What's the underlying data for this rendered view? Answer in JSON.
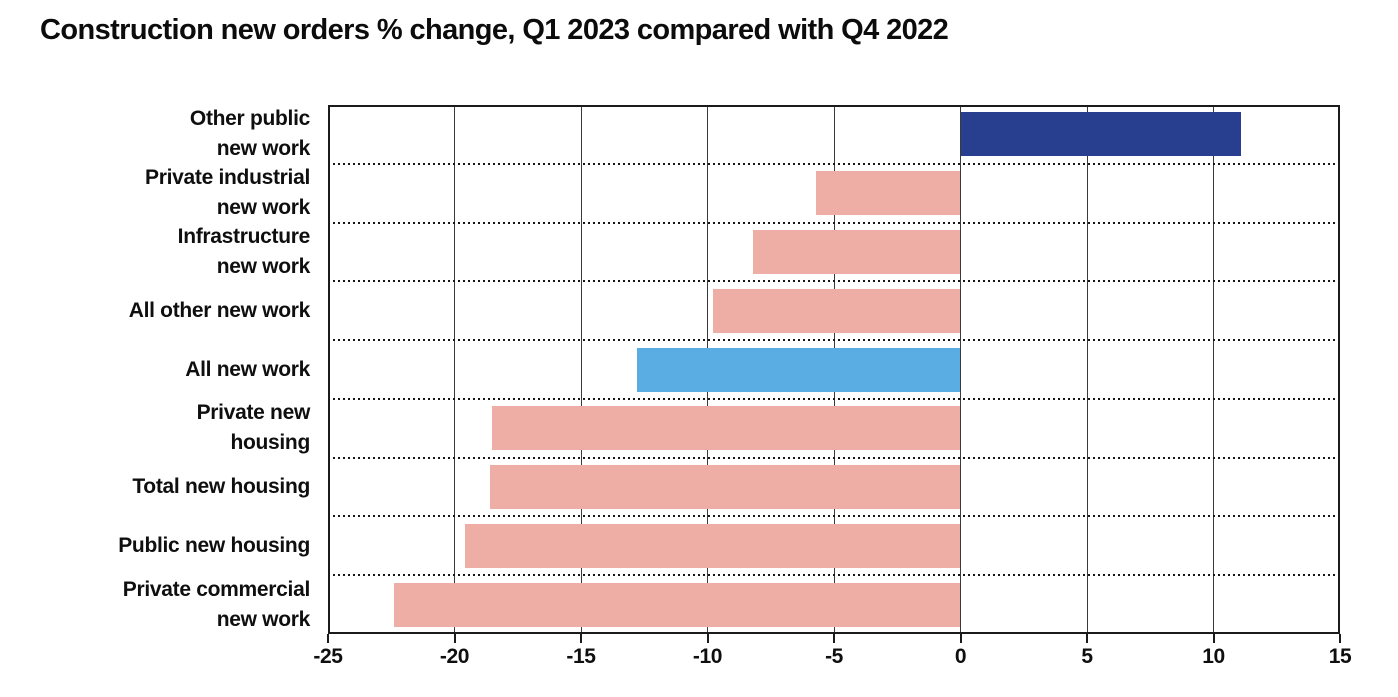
{
  "page": {
    "background": "#ffffff"
  },
  "chart_data": {
    "type": "bar",
    "orientation": "horizontal",
    "title": "Construction new orders % change, Q1 2023 compared with Q4 2022",
    "categories": [
      "Other public new work",
      "Private industrial new work",
      "Infrastructure new work",
      "All other new work",
      "All new work",
      "Private new housing",
      "Total new housing",
      "Public new housing",
      "Private commercial new work"
    ],
    "category_label_lines": [
      [
        "Other public",
        "new work"
      ],
      [
        "Private industrial",
        "new work"
      ],
      [
        "Infrastructure",
        "new work"
      ],
      [
        "All other new work"
      ],
      [
        "All new work"
      ],
      [
        "Private new",
        "housing"
      ],
      [
        "Total new housing"
      ],
      [
        "Public new housing"
      ],
      [
        "Private commercial",
        "new work"
      ]
    ],
    "values": [
      11.1,
      -5.7,
      -8.2,
      -9.8,
      -12.8,
      -18.5,
      -18.6,
      -19.6,
      -22.4
    ],
    "bar_colors": [
      "#273F8E",
      "#EFAEA5",
      "#EFAEA5",
      "#EFAEA5",
      "#5AADE2",
      "#EFAEA5",
      "#EFAEA5",
      "#EFAEA5",
      "#EFAEA5"
    ],
    "color_legend": {
      "positive_highlight": "#273F8E",
      "all_new_work_highlight": "#5AADE2",
      "negative_default": "#EFAEA5"
    },
    "xlabel": "",
    "ylabel": "",
    "xlim": [
      -25,
      15
    ],
    "x_ticks": [
      -25,
      -20,
      -15,
      -10,
      -5,
      0,
      5,
      10,
      15
    ],
    "x_tick_labels": [
      "-25",
      "-20",
      "-15",
      "-10",
      "-5",
      "0",
      "5",
      "10",
      "15"
    ],
    "grid": "solid vertical gridlines every 5 units; dotted horizontal row separators",
    "legend_position": "none",
    "unit": "%"
  }
}
